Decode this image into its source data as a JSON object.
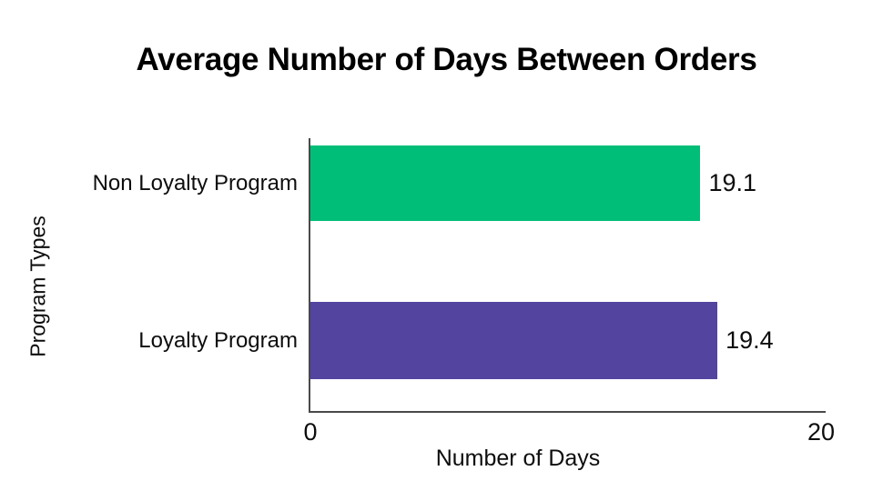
{
  "chart_data": {
    "type": "bar",
    "orientation": "horizontal",
    "title": "Average Number of Days Between Orders",
    "categories": [
      "Non Loyalty Program",
      "Loyalty Program"
    ],
    "values": [
      19.1,
      19.4
    ],
    "value_labels": [
      "19.1",
      "19.4"
    ],
    "series_colors": [
      "#00be78",
      "#5344a0"
    ],
    "xlabel": "Number of Days",
    "ylabel": "Program Types",
    "xlim": [
      0,
      20
    ],
    "x_tick_labels": [
      "0",
      "20"
    ],
    "grid": false,
    "legend": false,
    "layout": {
      "bar_width_pct": [
        75.7,
        79.0
      ],
      "axis_color": "#4a4a4a",
      "background": "#ffffff",
      "text_color": "#0d0d0d"
    }
  }
}
